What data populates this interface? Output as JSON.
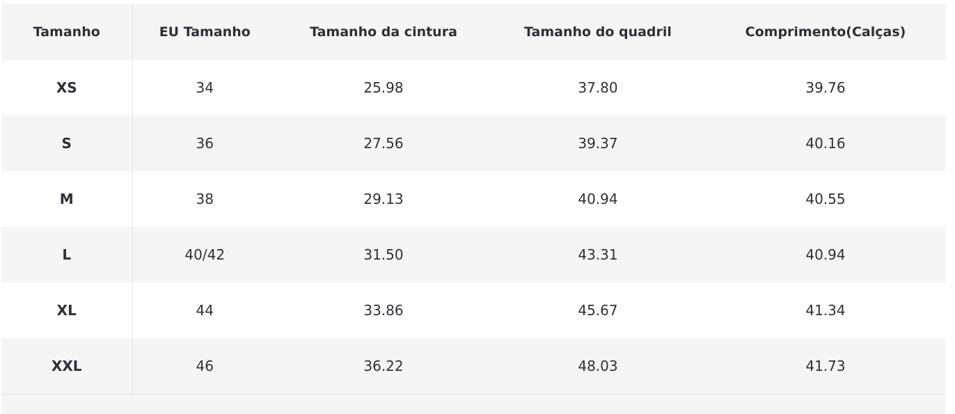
{
  "table": {
    "header": [
      "Tamanho",
      "EU Tamanho",
      "Tamanho da cintura",
      "Tamanho do quadril",
      "Comprimento(Calças)"
    ],
    "rows": [
      [
        "XS",
        "34",
        "25.98",
        "37.80",
        "39.76"
      ],
      [
        "S",
        "36",
        "27.56",
        "39.37",
        "40.16"
      ],
      [
        "M",
        "38",
        "29.13",
        "40.94",
        "40.55"
      ],
      [
        "L",
        "40/42",
        "31.50",
        "43.31",
        "40.94"
      ],
      [
        "XL",
        "44",
        "33.86",
        "45.67",
        "41.34"
      ],
      [
        "XXL",
        "46",
        "36.22",
        "48.03",
        "41.73"
      ]
    ]
  }
}
